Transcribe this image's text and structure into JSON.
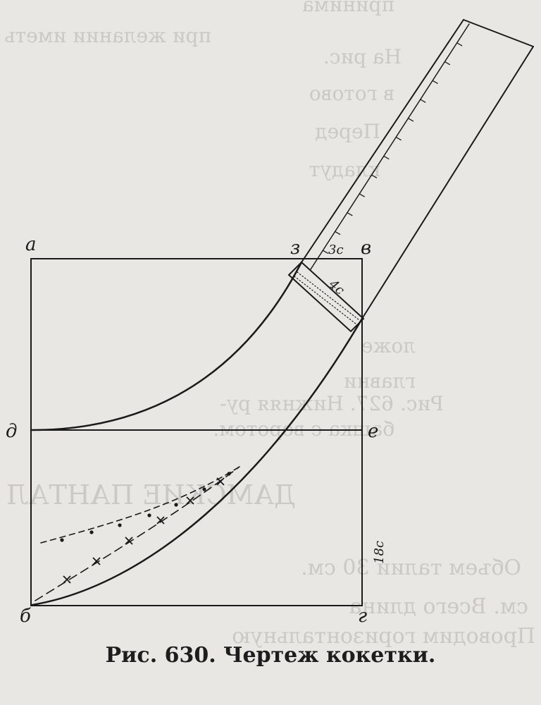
{
  "caption": "Рис. 630. Чертеж кокетки.",
  "points": {
    "a": "а",
    "v": "в",
    "z": "з",
    "d": "д",
    "e": "е",
    "b": "б",
    "g": "г"
  },
  "dimensions": {
    "top_3cm": "3с",
    "strip_4cm": "4с",
    "side_18cm": "18с"
  },
  "bleed_through": [
    "принима",
    "при желании иметь рубаш",
    "На рис.",
    "в готово",
    "Перед",
    "кладут",
    "ложе",
    "главни",
    "Рис. 627. Нижняя ру-",
    "башка с воротом.",
    "ДАМСКИЕ ПАНТАЛ",
    "Объем талии 30 см.",
    "см. Всего длина",
    "Проводим горизонтальную"
  ],
  "colors": {
    "paper": "#e9e7e3",
    "ink": "#1a1a1a",
    "ghost": "#c9c6c1"
  }
}
